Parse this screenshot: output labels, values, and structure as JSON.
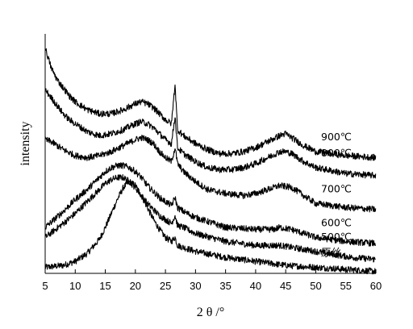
{
  "chart_data": {
    "type": "line",
    "xlabel": "2 θ /°",
    "ylabel": "intensity",
    "xlim": [
      5,
      60
    ],
    "ylim": [
      0,
      120
    ],
    "x_ticks": [
      5,
      10,
      15,
      20,
      25,
      30,
      35,
      40,
      45,
      50,
      55,
      60
    ],
    "y_ticks_shown": false,
    "grid": false,
    "legend": "inline labels at right end of each curve",
    "line_color": "#000000",
    "series": [
      {
        "name": "原丝",
        "x": [
          5,
          8,
          10,
          12,
          14,
          15,
          16,
          17,
          18,
          19,
          20,
          21,
          22,
          23,
          24,
          25,
          26,
          26.6,
          27,
          28,
          30,
          35,
          40,
          45,
          50,
          55,
          60
        ],
        "values": [
          3,
          4,
          6,
          10,
          17,
          23,
          30,
          37,
          43,
          46,
          44,
          39,
          33,
          27,
          22,
          18,
          16,
          18,
          14,
          13,
          11,
          8,
          6,
          4,
          3,
          2,
          1
        ]
      },
      {
        "name": "500℃",
        "x": [
          5,
          8,
          10,
          12,
          14,
          15,
          16,
          17,
          18,
          19,
          20,
          21,
          22,
          23,
          24,
          25,
          26,
          26.6,
          27,
          28,
          30,
          35,
          40,
          44,
          48,
          52,
          56,
          60
        ],
        "values": [
          18,
          25,
          30,
          36,
          42,
          45,
          47,
          48,
          48,
          46,
          43,
          39,
          35,
          32,
          29,
          27,
          25,
          29,
          24,
          23,
          20,
          16,
          14,
          14,
          12,
          10,
          8,
          7
        ]
      },
      {
        "name": "600℃",
        "x": [
          5,
          8,
          10,
          12,
          14,
          15,
          16,
          17,
          18,
          19,
          20,
          21,
          22,
          23,
          24,
          25,
          26,
          26.6,
          27,
          28,
          30,
          35,
          40,
          43,
          44,
          46,
          50,
          55,
          60
        ],
        "values": [
          23,
          31,
          37,
          42,
          48,
          51,
          53,
          54,
          54,
          53,
          51,
          48,
          44,
          41,
          38,
          36,
          34,
          38,
          33,
          31,
          28,
          23,
          22,
          22,
          23,
          22,
          18,
          16,
          15
        ]
      },
      {
        "name": "700℃",
        "x": [
          5,
          6,
          7,
          8,
          10,
          12,
          14,
          16,
          18,
          20,
          21,
          22,
          23,
          24,
          25,
          26,
          26.6,
          27,
          28,
          30,
          32,
          35,
          38,
          40,
          42,
          44,
          46,
          48,
          50,
          55,
          60
        ],
        "values": [
          67,
          66,
          64,
          62,
          59,
          58,
          59,
          61,
          64,
          67,
          68,
          67,
          65,
          61,
          58,
          56,
          63,
          55,
          51,
          46,
          42,
          40,
          39,
          40,
          42,
          44,
          43,
          39,
          35,
          33,
          32
        ]
      },
      {
        "name": "800℃",
        "x": [
          5,
          6,
          7,
          8,
          9,
          10,
          12,
          14,
          16,
          18,
          20,
          21,
          22,
          23,
          24,
          25,
          26,
          26.6,
          27,
          28,
          30,
          32,
          34,
          36,
          38,
          40,
          42,
          44,
          45,
          46,
          48,
          50,
          55,
          60
        ],
        "values": [
          92,
          88,
          84,
          80,
          77,
          75,
          71,
          69,
          70,
          72,
          75,
          76,
          75,
          73,
          70,
          67,
          65,
          79,
          63,
          60,
          56,
          53,
          52,
          52,
          53,
          55,
          58,
          61,
          61,
          60,
          56,
          53,
          50,
          49
        ]
      },
      {
        "name": "900℃",
        "x": [
          5,
          5.5,
          6,
          7,
          8,
          9,
          10,
          12,
          14,
          16,
          18,
          20,
          21,
          22,
          23,
          24,
          25,
          26,
          26.6,
          27,
          28,
          30,
          32,
          34,
          36,
          38,
          40,
          42,
          44,
          45,
          46,
          48,
          50,
          55,
          60
        ],
        "values": [
          113,
          108,
          103,
          97,
          93,
          89,
          86,
          82,
          80,
          80,
          82,
          85,
          86,
          85,
          83,
          80,
          77,
          75,
          95,
          72,
          69,
          65,
          62,
          60,
          60,
          61,
          63,
          66,
          69,
          70,
          68,
          64,
          61,
          59,
          58
        ]
      }
    ],
    "series_label_x": [
      398,
      398,
      398,
      398,
      398,
      398
    ]
  }
}
